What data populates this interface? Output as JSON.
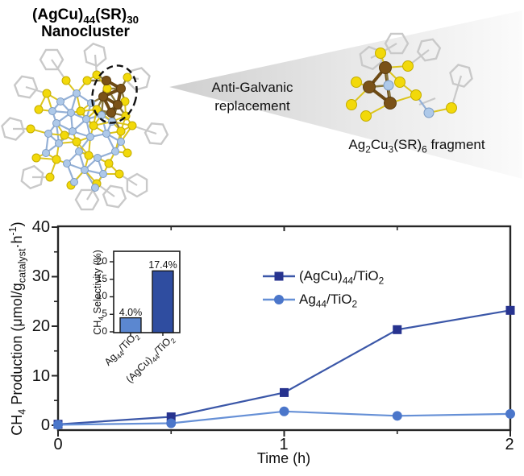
{
  "header": {
    "cluster_title_line1": "(AgCu)_44_(SR)_30_",
    "cluster_title_line2": "Nanocluster",
    "process_label_line1": "Anti-Galvanic",
    "process_label_line2": "replacement",
    "fragment_caption": "Ag_2_Cu_3_(SR)_6_ fragment",
    "colors": {
      "silver_atom": "#aec9e9",
      "sulfur_atom": "#f2d90a",
      "copper_atom": "#7a5218",
      "ligand_gray": "#c9c9c9",
      "beam_gray": "#d0d0d0"
    }
  },
  "chart_data": [
    {
      "type": "line",
      "title": "",
      "xlabel": "Time (h)",
      "ylabel": "CH_4_ Production (μmol/g_catalyst_·h^-1^)",
      "xlim": [
        0,
        2
      ],
      "ylim": [
        0,
        40
      ],
      "xticks": [
        "0",
        "1",
        "2"
      ],
      "xticks_minor": [
        0.5,
        1.5
      ],
      "yticks": [
        "0",
        "10",
        "20",
        "30",
        "40"
      ],
      "yticks_minor": [
        5,
        15,
        25,
        35
      ],
      "grid": false,
      "legend_position": "inside upper right",
      "x": [
        0,
        0.5,
        1,
        1.5,
        2
      ],
      "series": [
        {
          "name": "(AgCu)_44_/TiO_2_",
          "values": [
            0.2,
            1.7,
            6.6,
            19.3,
            23.2
          ],
          "marker": "square",
          "line_color": "#3b57a8",
          "marker_color": "#27338f"
        },
        {
          "name": "Ag_44_/TiO_2_",
          "values": [
            0.1,
            0.4,
            2.8,
            1.9,
            2.3
          ],
          "marker": "circle",
          "line_color": "#6690d6",
          "marker_color": "#4b76ca"
        }
      ]
    },
    {
      "type": "bar",
      "title": "",
      "ylabel": "CH_4_ Selectivity (%)",
      "ylim": [
        0,
        23
      ],
      "yticks": [
        "0",
        "5",
        "10",
        "15",
        "20"
      ],
      "grid": false,
      "categories": [
        "Ag_44_/TiO_2_",
        "(AgCu)_44_/TiO_2_"
      ],
      "values": [
        4.0,
        17.4
      ],
      "value_labels": [
        "4.0%",
        "17.4%"
      ],
      "bar_colors": [
        "#5b87d0",
        "#2f4da0"
      ]
    }
  ]
}
